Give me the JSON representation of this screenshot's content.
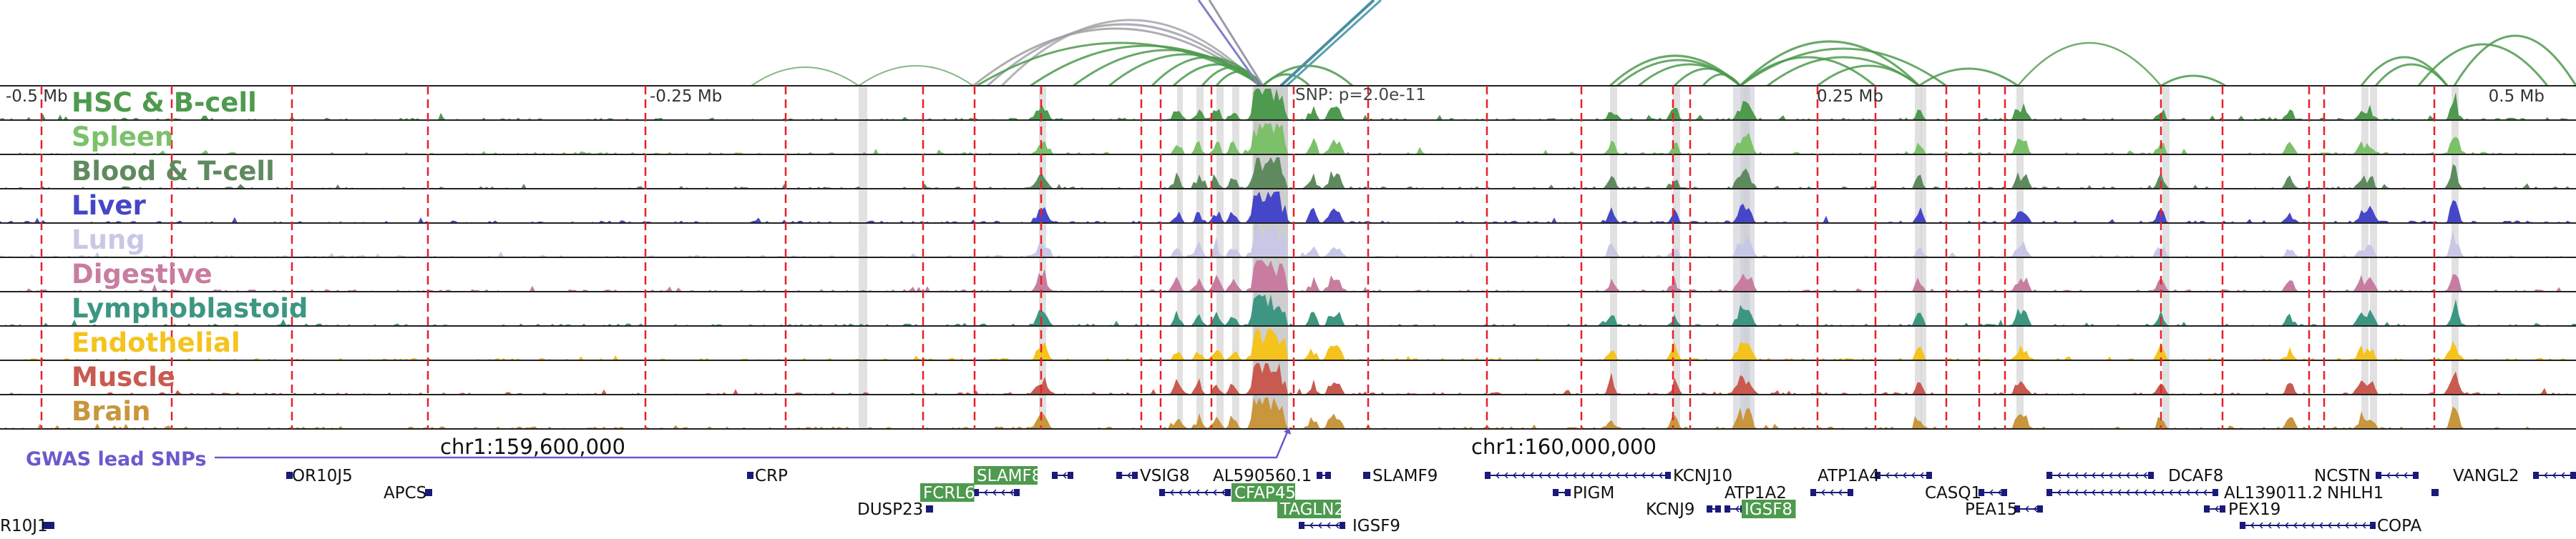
{
  "axis_labels": [
    {
      "text": "-0.5 Mb",
      "anchor": "start"
    },
    {
      "text": "-0.25 Mb",
      "anchor": "start"
    },
    {
      "text": "0.25 Mb",
      "anchor": "end"
    },
    {
      "text": "0.5 Mb",
      "anchor": "end"
    }
  ],
  "snp_label": "SNP: p=2.0e-11",
  "tracks": [
    {
      "name": "HSC & B-cell",
      "color": "#4e9a4e"
    },
    {
      "name": "Spleen",
      "color": "#7cc16a"
    },
    {
      "name": "Blood & T-cell",
      "color": "#5f8a5f"
    },
    {
      "name": "Liver",
      "color": "#4646c8"
    },
    {
      "name": "Lung",
      "color": "#c8c8e6"
    },
    {
      "name": "Digestive",
      "color": "#c87da0"
    },
    {
      "name": "Lymphoblastoid",
      "color": "#3c9682"
    },
    {
      "name": "Endothelial",
      "color": "#f5c31e"
    },
    {
      "name": "Muscle",
      "color": "#c85a50"
    },
    {
      "name": "Brain",
      "color": "#c8963c"
    }
  ],
  "gwas_label": "GWAS lead SNPs",
  "chrom_labels": [
    "chr1:159,600,000",
    "chr1:160,000,000"
  ],
  "genes": [
    {
      "name": "OR10J5",
      "row": 0,
      "highlight": false
    },
    {
      "name": "CRP",
      "row": 0,
      "highlight": false
    },
    {
      "name": "SLAMF8",
      "row": 0,
      "highlight": true
    },
    {
      "name": "VSIG8",
      "row": 0,
      "highlight": false
    },
    {
      "name": "AL590560.1",
      "row": 0,
      "highlight": false
    },
    {
      "name": "SLAMF9",
      "row": 0,
      "highlight": false
    },
    {
      "name": "KCNJ10",
      "row": 0,
      "highlight": false
    },
    {
      "name": "ATP1A4",
      "row": 0,
      "highlight": false
    },
    {
      "name": "DCAF8",
      "row": 0,
      "highlight": false
    },
    {
      "name": "NCSTN",
      "row": 0,
      "highlight": false
    },
    {
      "name": "VANGL2",
      "row": 0,
      "highlight": false
    },
    {
      "name": "APCS",
      "row": 1,
      "highlight": false
    },
    {
      "name": "FCRL6",
      "row": 1,
      "highlight": true
    },
    {
      "name": "CFAP45",
      "row": 1,
      "highlight": true
    },
    {
      "name": "PIGM",
      "row": 1,
      "highlight": false
    },
    {
      "name": "ATP1A2",
      "row": 1,
      "highlight": false
    },
    {
      "name": "CASQ1",
      "row": 1,
      "highlight": false
    },
    {
      "name": "AL139011.2",
      "row": 1,
      "highlight": false
    },
    {
      "name": "NHLH1",
      "row": 1,
      "highlight": false
    },
    {
      "name": "DUSP23",
      "row": 2,
      "highlight": false
    },
    {
      "name": "TAGLN2",
      "row": 2,
      "highlight": true
    },
    {
      "name": "KCNJ9",
      "row": 2,
      "highlight": false
    },
    {
      "name": "IGSF8",
      "row": 2,
      "highlight": true
    },
    {
      "name": "PEA15",
      "row": 2,
      "highlight": false
    },
    {
      "name": "PEX19",
      "row": 2,
      "highlight": false
    },
    {
      "name": "R10J1",
      "row": 3,
      "highlight": false
    },
    {
      "name": "IGSF9",
      "row": 3,
      "highlight": false
    },
    {
      "name": "COPA",
      "row": 3,
      "highlight": false
    }
  ],
  "colors": {
    "arc": "#4e9a4e",
    "gwas": "#6a5acd",
    "gene": "#1a1a7a",
    "highlight_gene": "#4e9a4e",
    "red_marker": "#e8202a",
    "gray_marker": "#d4d4d4"
  }
}
